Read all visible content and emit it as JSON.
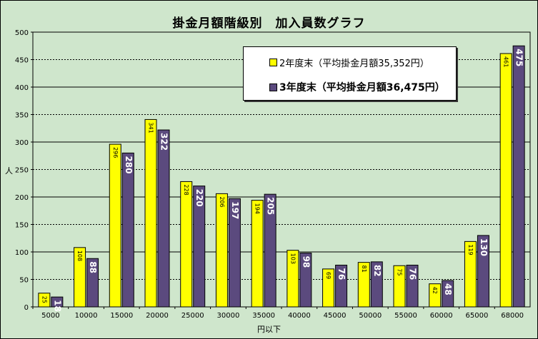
{
  "chart_data": {
    "type": "bar",
    "title": "掛金月額階級別　加入員数グラフ",
    "xlabel": "円以下",
    "ylabel": "人",
    "ylim": [
      0,
      500
    ],
    "yticks": [
      0,
      50,
      100,
      150,
      200,
      250,
      300,
      350,
      400,
      450,
      500
    ],
    "grid": true,
    "legend_position": "top-right",
    "categories": [
      "5000",
      "10000",
      "15000",
      "20000",
      "25000",
      "30000",
      "35000",
      "40000",
      "45000",
      "50000",
      "55000",
      "60000",
      "65000",
      "68000"
    ],
    "series": [
      {
        "name": "2年度末（平均掛金月額35,352円）",
        "color": "#ffff00",
        "values": [
          25,
          108,
          296,
          341,
          228,
          206,
          194,
          103,
          69,
          81,
          75,
          42,
          119,
          461
        ]
      },
      {
        "name": "3年度末（平均掛金月額36,475円）",
        "color": "#5b4a7e",
        "values": [
          18,
          88,
          280,
          322,
          220,
          197,
          205,
          98,
          76,
          82,
          76,
          48,
          130,
          475
        ]
      }
    ]
  },
  "colors": {
    "background": "#cfe6cc",
    "plot_background": "#cfe6cc",
    "grid_major": "#000000"
  }
}
